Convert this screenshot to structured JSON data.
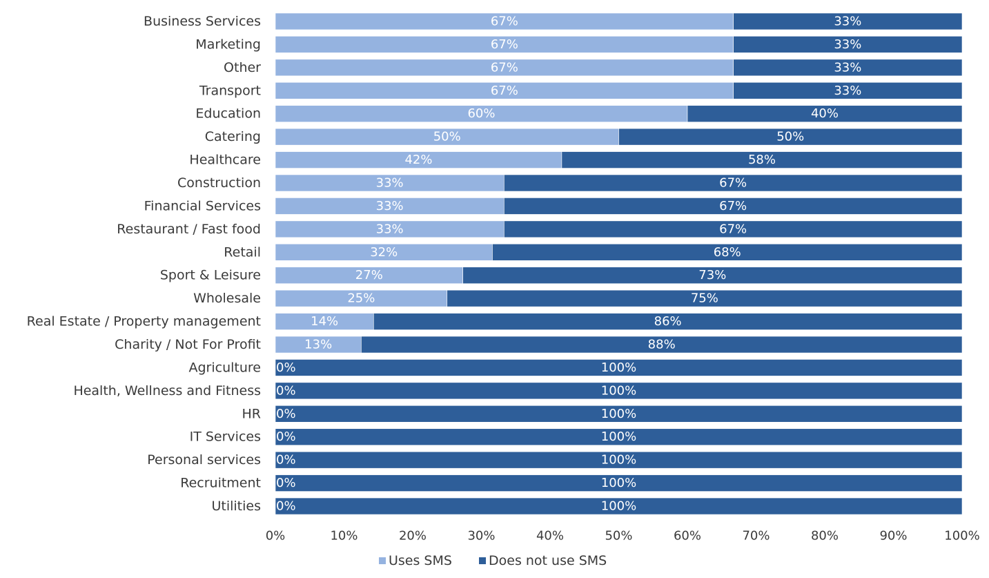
{
  "chart_data": {
    "type": "bar",
    "orientation": "horizontal",
    "stacked": true,
    "categories": [
      "Business Services",
      "Marketing",
      "Other",
      "Transport",
      "Education",
      "Catering",
      "Healthcare",
      "Construction",
      "Financial Services",
      "Restaurant / Fast food",
      "Retail",
      "Sport & Leisure",
      "Wholesale",
      "Real Estate / Property management",
      "Charity / Not For Profit",
      "Agriculture",
      "Health, Wellness and Fitness",
      "HR",
      "IT Services",
      "Personal services",
      "Recruitment",
      "Utilities"
    ],
    "series": [
      {
        "name": "Uses SMS",
        "color": "#95b3e0",
        "values": [
          66.7,
          66.7,
          66.7,
          66.7,
          60,
          50,
          41.7,
          33.3,
          33.3,
          33.3,
          31.6,
          27.3,
          25,
          14.3,
          12.5,
          0,
          0,
          0,
          0,
          0,
          0,
          0
        ],
        "labels": [
          "67%",
          "67%",
          "67%",
          "67%",
          "60%",
          "50%",
          "42%",
          "33%",
          "33%",
          "33%",
          "32%",
          "27%",
          "25%",
          "14%",
          "13%",
          "0%",
          "0%",
          "0%",
          "0%",
          "0%",
          "0%",
          "0%"
        ]
      },
      {
        "name": "Does not use SMS",
        "color": "#2e5e99",
        "values": [
          33.3,
          33.3,
          33.3,
          33.3,
          40,
          50,
          58.3,
          66.7,
          66.7,
          66.7,
          68.4,
          72.7,
          75,
          85.7,
          87.5,
          100,
          100,
          100,
          100,
          100,
          100,
          100
        ],
        "labels": [
          "33%",
          "33%",
          "33%",
          "33%",
          "40%",
          "50%",
          "58%",
          "67%",
          "67%",
          "67%",
          "68%",
          "73%",
          "75%",
          "86%",
          "88%",
          "100%",
          "100%",
          "100%",
          "100%",
          "100%",
          "100%",
          "100%"
        ]
      }
    ],
    "xlim": [
      0,
      100
    ],
    "xticks": [
      "0%",
      "10%",
      "20%",
      "30%",
      "40%",
      "50%",
      "60%",
      "70%",
      "80%",
      "90%",
      "100%"
    ],
    "legend_position": "bottom",
    "grid": false
  }
}
